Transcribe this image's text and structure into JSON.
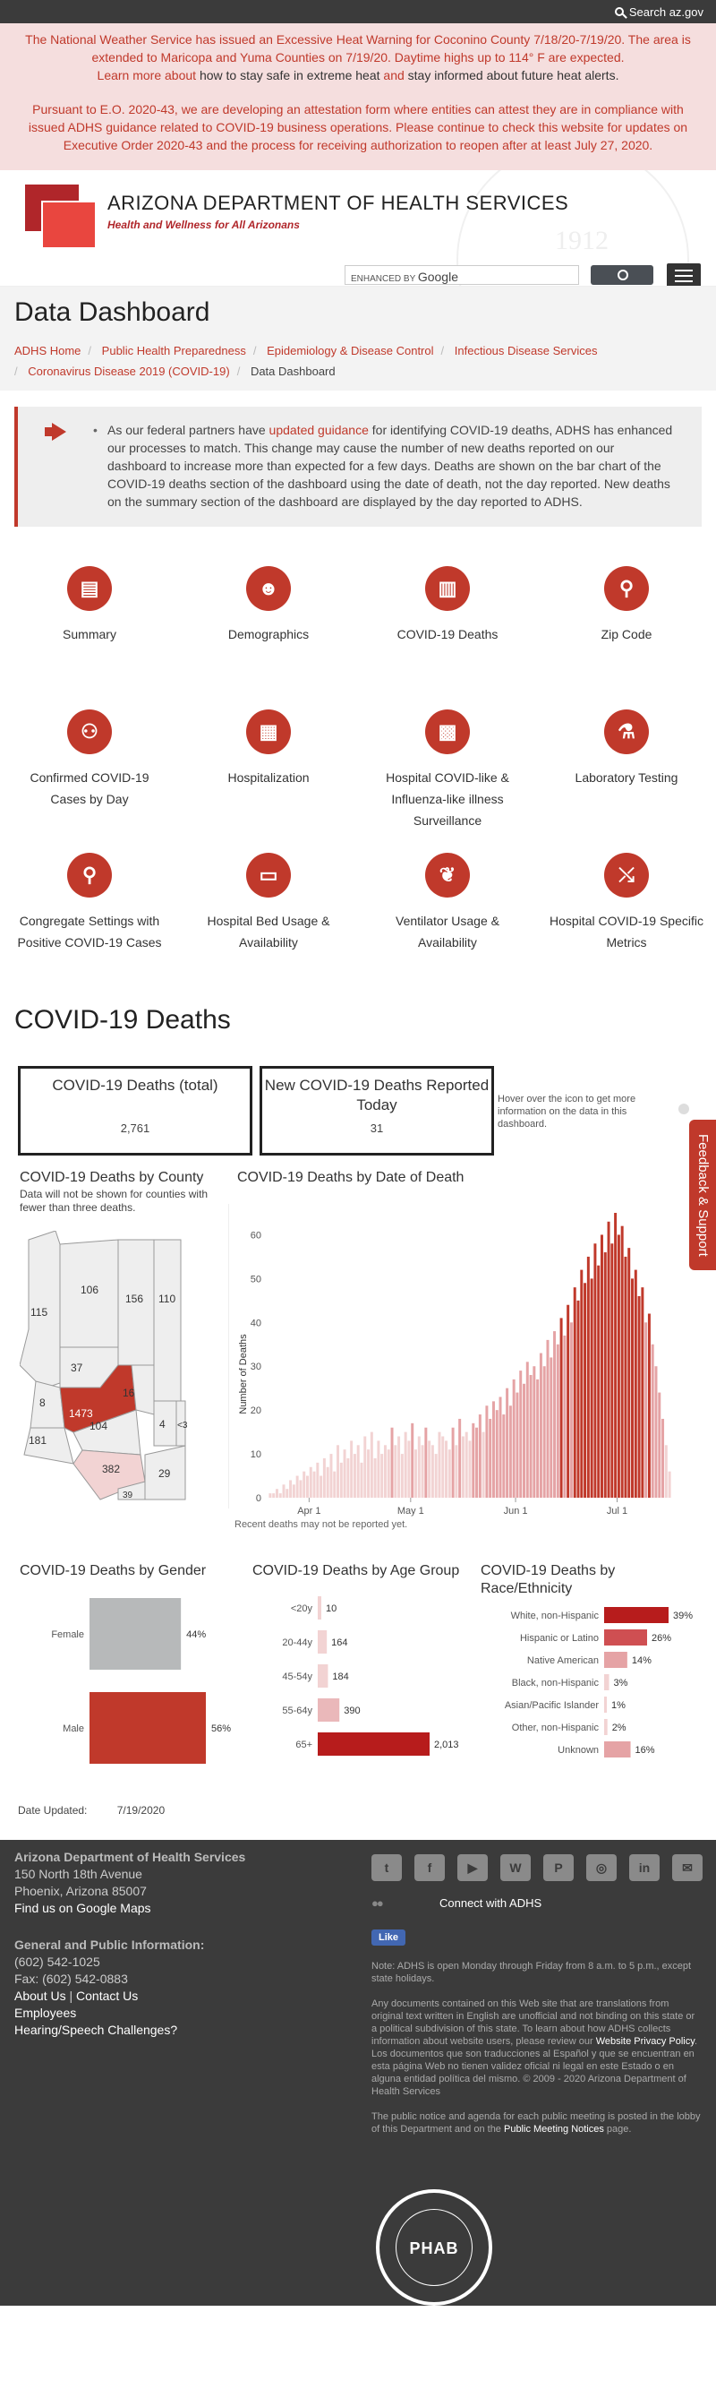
{
  "topbar": {
    "search_label": "Search az.gov"
  },
  "alerts": {
    "heat_1": "The National Weather Service has issued an Excessive Heat Warning for Coconino County 7/18/20-7/19/20. The area is extended to Maricopa and Yuma Counties on 7/19/20. Daytime highs up to 114° F are expected.",
    "heat_2a": "Learn more about",
    "heat_2b": " how to stay safe in extreme heat ",
    "heat_2c": "and",
    "heat_2d": " stay informed about future heat alerts.",
    "eo": "Pursuant to E.O. 2020-43, we are developing an attestation form where entities can attest they are in compliance with issued ADHS guidance related to COVID-19 business operations. Please continue to check this website for updates on Executive Order 2020-43 and the process for receiving authorization to reopen after at least July 27, 2020."
  },
  "header": {
    "org_name": "ARIZONA DEPARTMENT OF HEALTH SERVICES",
    "tagline": "Health and Wellness for All Arizonans",
    "seal_year": "1912",
    "search_enhanced": "ENHANCED BY",
    "search_google": "Google"
  },
  "page": {
    "title": "Data Dashboard"
  },
  "breadcrumbs": [
    "ADHS Home",
    "Public Health Preparedness",
    "Epidemiology & Disease Control",
    "Infectious Disease Services",
    "Coronavirus Disease 2019 (COVID-19)",
    "Data Dashboard"
  ],
  "notice": {
    "text_a": "As our federal partners have ",
    "link": "updated guidance",
    "text_b": " for identifying COVID-19 deaths, ADHS has enhanced our processes to match. This change may cause the number of new deaths reported on our dashboard to increase more than expected for a few days. Deaths are shown on the bar chart of the COVID-19 deaths section of the dashboard using the date of death, not the day reported. New deaths on the summary section of the dashboard are displayed by the day reported to ADHS."
  },
  "nav_icons": [
    {
      "label": "Summary",
      "glyph": "▤",
      "icon": "document-icon"
    },
    {
      "label": "Demographics",
      "glyph": "☻",
      "icon": "people-icon"
    },
    {
      "label": "COVID-19 Deaths",
      "glyph": "▥",
      "icon": "bar-chart-icon"
    },
    {
      "label": "Zip Code",
      "glyph": "⚲",
      "icon": "location-icon"
    },
    {
      "label": "Confirmed COVID-19 Cases by Day",
      "glyph": "⚇",
      "icon": "network-icon"
    },
    {
      "label": "Hospitalization",
      "glyph": "▦",
      "icon": "hospital-building-icon"
    },
    {
      "label": "Hospital COVID-like & Influenza-like illness Surveillance",
      "glyph": "▩",
      "icon": "hospital-icon"
    },
    {
      "label": "Laboratory Testing",
      "glyph": "⚗",
      "icon": "test-tubes-icon"
    },
    {
      "label": "Congregate Settings with Positive COVID-19 Cases",
      "glyph": "⚲",
      "icon": "microscope-icon"
    },
    {
      "label": "Hospital Bed Usage & Availability",
      "glyph": "▭",
      "icon": "bed-icon"
    },
    {
      "label": "Ventilator Usage & Availability",
      "glyph": "❦",
      "icon": "lungs-icon"
    },
    {
      "label": "Hospital COVID-19 Specific Metrics",
      "glyph": "⤯",
      "icon": "trend-chart-icon"
    }
  ],
  "deaths": {
    "section_title": "COVID-19 Deaths",
    "kpi_total_label": "COVID-19 Deaths (total)",
    "kpi_total_value": "2,761",
    "kpi_new_label": "New COVID-19 Deaths Reported Today",
    "kpi_new_value": "31",
    "hover_note": "Hover over the icon to get more information on the data in this dashboard.",
    "county_title": "COVID-19 Deaths by County",
    "county_sub": "Data will not be shown for counties with fewer than three deaths.",
    "date_title": "COVID-19 Deaths by Date of Death",
    "recent_note": "Recent deaths may not be reported yet.",
    "gender_title": "COVID-19 Deaths by Gender",
    "age_title": "COVID-19 Deaths by Age Group",
    "race_title": "COVID-19 Deaths by Race/Ethnicity"
  },
  "county_map": {
    "labels": [
      "115",
      "106",
      "156",
      "110",
      "37",
      "16",
      "8",
      "1473",
      "104",
      "4",
      "<3",
      "181",
      "382",
      "29",
      "39"
    ],
    "colors": {
      "none": "#eeeeee",
      "low": "#f2d3d3",
      "mid": "#e5a3a5",
      "high": "#c0392b"
    }
  },
  "chart_data": [
    {
      "type": "bar",
      "title": "COVID-19 Deaths by Date of Death",
      "ylabel": "Number of Deaths",
      "xlabel": "",
      "ylim": [
        0,
        65
      ],
      "yticks": [
        0,
        10,
        20,
        30,
        40,
        50,
        60
      ],
      "xticks": [
        "Apr 1",
        "May 1",
        "Jun 1",
        "Jul 1"
      ],
      "x_start": "2020-03-20",
      "values": [
        1,
        1,
        2,
        1,
        3,
        2,
        4,
        3,
        5,
        4,
        6,
        5,
        7,
        6,
        8,
        5,
        9,
        7,
        10,
        6,
        12,
        8,
        11,
        9,
        13,
        10,
        12,
        8,
        14,
        11,
        15,
        9,
        13,
        10,
        12,
        11,
        16,
        12,
        14,
        10,
        15,
        13,
        17,
        11,
        14,
        12,
        16,
        13,
        12,
        10,
        15,
        14,
        13,
        11,
        16,
        12,
        18,
        14,
        15,
        13,
        17,
        16,
        19,
        15,
        21,
        18,
        22,
        20,
        23,
        19,
        25,
        21,
        27,
        24,
        29,
        26,
        31,
        28,
        30,
        27,
        33,
        30,
        36,
        32,
        38,
        35,
        41,
        37,
        44,
        40,
        48,
        45,
        52,
        49,
        55,
        50,
        58,
        53,
        60,
        56,
        63,
        58,
        65,
        60,
        62,
        55,
        57,
        50,
        52,
        46,
        48,
        40,
        42,
        35,
        30,
        24,
        18,
        12,
        6
      ],
      "color_scale": [
        "#f2d3d3",
        "#e5a3a5",
        "#c0392b"
      ]
    },
    {
      "type": "bar",
      "title": "COVID-19 Deaths by Gender",
      "categories": [
        "Female",
        "Male"
      ],
      "values": [
        44,
        56
      ],
      "value_labels": [
        "44%",
        "56%"
      ],
      "colors": [
        "#b7b9ba",
        "#c0392b"
      ]
    },
    {
      "type": "bar",
      "title": "COVID-19 Deaths by Age Group",
      "categories": [
        "<20y",
        "20-44y",
        "45-54y",
        "55-64y",
        "65+"
      ],
      "values": [
        10,
        164,
        184,
        390,
        2013
      ],
      "value_labels": [
        "10",
        "164",
        "184",
        "390",
        "2,013"
      ],
      "colors": [
        "#f2d3d3",
        "#f2d3d3",
        "#f2d3d3",
        "#eab8ba",
        "#b71c1c"
      ]
    },
    {
      "type": "bar",
      "title": "COVID-19 Deaths by Race/Ethnicity",
      "categories": [
        "White, non-Hispanic",
        "Hispanic or Latino",
        "Native American",
        "Black, non-Hispanic",
        "Asian/Pacific Islander",
        "Other, non-Hispanic",
        "Unknown"
      ],
      "values": [
        39,
        26,
        14,
        3,
        1,
        2,
        16
      ],
      "value_labels": [
        "39%",
        "26%",
        "14%",
        "3%",
        "1%",
        "2%",
        "16%"
      ],
      "colors": [
        "#b71c1c",
        "#cf4f52",
        "#e5a3a5",
        "#f2d3d3",
        "#f2d3d3",
        "#f2d3d3",
        "#e5a3a5"
      ]
    }
  ],
  "updated": {
    "label": "Date Updated:",
    "value": "7/19/2020"
  },
  "footer": {
    "org": "Arizona Department of Health Services",
    "addr1": "150 North 18th Avenue",
    "addr2": "Phoenix, Arizona 85007",
    "maps": "Find us on Google Maps",
    "gen_info": "General and Public Information:",
    "phone": "(602) 542-1025",
    "fax": "Fax: (602) 542-0883",
    "about": "About Us",
    "contact": "Contact Us",
    "employees": "Employees",
    "hearing": "Hearing/Speech Challenges?",
    "social": [
      "twitter-icon",
      "facebook-icon",
      "youtube-icon",
      "wordpress-icon",
      "pinterest-icon",
      "instagram-icon",
      "linkedin-icon",
      "email-icon"
    ],
    "social_glyphs": [
      "t",
      "f",
      "▶",
      "W",
      "P",
      "◎",
      "in",
      "✉"
    ],
    "connect": "Connect with ADHS",
    "like": "Like",
    "note": "Note: ADHS is open Monday through Friday from 8 a.m. to 5 p.m., except state holidays.",
    "disclaimer_a": "Any documents contained on this Web site that are translations from original text written in English are unofficial and not binding on this state or a political subdivision of this state. To learn about how ADHS collects information about website users, please review our ",
    "privacy": "Website Privacy Policy",
    "disclaimer_b": ". Los documentos que son traducciones al Español y que se encuentran en esta página Web no tienen validez oficial ni legal en este Estado o en alguna entidad política del mismo. © 2009 - 2020 Arizona Department of Health Services",
    "meetings_a": "The public notice and agenda for each public meeting is posted in the lobby of this Department and on the ",
    "meetings_link": "Public Meeting Notices",
    "meetings_b": " page.",
    "phab": "PHAB"
  }
}
